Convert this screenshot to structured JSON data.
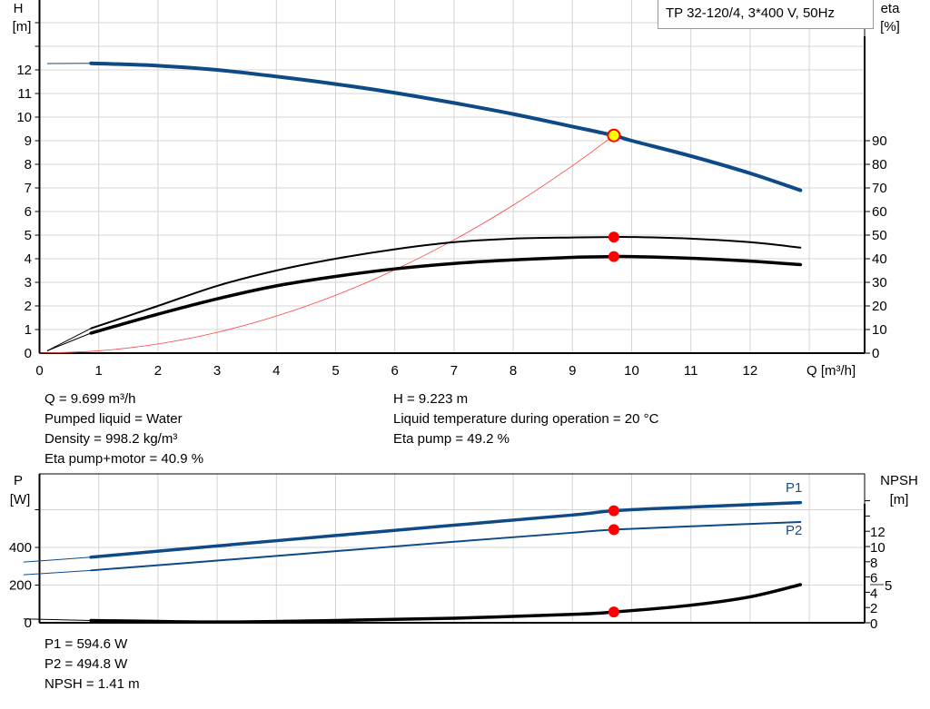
{
  "title": "TP 32-120/4, 3*400 V, 50Hz",
  "info_top": {
    "left": [
      "Q = 9.699 m³/h",
      "Pumped liquid = Water",
      "Density = 998.2 kg/m³",
      "Eta pump+motor = 40.9 %"
    ],
    "right": [
      "H = 9.223 m",
      "Liquid temperature during operation = 20 °C",
      "Eta pump = 49.2 %"
    ]
  },
  "info_bottom": [
    "P1 = 594.6 W",
    "P2 = 494.8 W",
    "NPSH = 1.41 m"
  ],
  "colors": {
    "head": "#0d4a86",
    "eta": "#000000",
    "system": "#ff4040",
    "marker": "#ff0000",
    "marker_head_fill": "#ffff00",
    "grid": "#d4d4d4"
  },
  "chart_data": [
    {
      "type": "line",
      "xlabel": "Q [m³/h]",
      "ylabel": "H\n[m]",
      "ylabel_lines": [
        "H",
        "[m]"
      ],
      "y2label_lines": [
        "eta",
        "[%]"
      ],
      "xlim": [
        0,
        14
      ],
      "ylim": [
        0,
        15
      ],
      "y2lim": [
        0,
        150
      ],
      "xticks": [
        "0",
        "1",
        "2",
        "3",
        "4",
        "5",
        "6",
        "7",
        "8",
        "9",
        "10",
        "11",
        "12"
      ],
      "yticks": [
        "0",
        "1",
        "2",
        "3",
        "4",
        "5",
        "6",
        "7",
        "8",
        "9",
        "10",
        "11",
        "12"
      ],
      "y2ticks": [
        "0",
        "10",
        "20",
        "30",
        "40",
        "50",
        "60",
        "70",
        "80",
        "90"
      ],
      "grid": true,
      "duty_point": {
        "Q": 9.699,
        "H": 9.223,
        "eta_pump": 49.2,
        "eta_pump_motor": 40.9
      },
      "series": [
        {
          "key": "H",
          "axis": "left",
          "x": [
            0.13,
            0.87,
            2,
            3,
            4,
            5,
            6,
            7,
            8,
            9,
            9.699,
            10,
            11,
            12,
            12.85
          ],
          "y": [
            12.27,
            12.28,
            12.18,
            12.0,
            11.72,
            11.4,
            11.03,
            10.6,
            10.13,
            9.6,
            9.223,
            9.0,
            8.35,
            7.62,
            6.9
          ]
        },
        {
          "key": "eta_pump",
          "axis": "right",
          "x": [
            0.13,
            0.87,
            2,
            3,
            4,
            5,
            6,
            7,
            8,
            9,
            9.699,
            10,
            11,
            12,
            12.85
          ],
          "y": [
            1,
            10.5,
            20,
            28.5,
            35,
            40,
            44,
            47,
            48.5,
            49,
            49.2,
            49.2,
            48.5,
            47,
            44.7
          ]
        },
        {
          "key": "eta_pump_motor",
          "axis": "right",
          "x": [
            0.13,
            0.87,
            2,
            3,
            4,
            5,
            6,
            7,
            8,
            9,
            9.699,
            10,
            11,
            12,
            12.85
          ],
          "y": [
            1,
            8.5,
            16.5,
            23,
            28.5,
            32.5,
            35.7,
            38,
            39.5,
            40.6,
            40.9,
            40.9,
            40.2,
            39,
            37.5
          ]
        },
        {
          "key": "system",
          "axis": "left",
          "x": [
            0,
            1,
            2,
            3,
            4,
            5,
            6,
            7,
            8,
            9,
            9.699
          ],
          "y": [
            0,
            0.098,
            0.39,
            0.88,
            1.57,
            2.45,
            3.53,
            4.8,
            6.27,
            7.94,
            9.223
          ]
        }
      ]
    },
    {
      "type": "line",
      "ylabel_lines": [
        "P",
        "[W]"
      ],
      "y2label_lines": [
        "NPSH",
        "[m]"
      ],
      "xlim": [
        0,
        14
      ],
      "ylim": [
        0,
        790
      ],
      "y2lim": [
        0,
        19.5
      ],
      "yticks": [
        "0",
        "200",
        "400"
      ],
      "y2ticks": [
        "0",
        "2",
        "4",
        "5",
        "6",
        "8",
        "10",
        "12"
      ],
      "grid": true,
      "duty_point": {
        "P1": 594.6,
        "P2": 494.8,
        "NPSH": 1.41
      },
      "series": [
        {
          "key": "P1",
          "name": "P1",
          "axis": "left",
          "x": [
            -0.27,
            0.87,
            3,
            5,
            7,
            9,
            9.699,
            11,
            12.85
          ],
          "y": [
            322,
            348,
            408,
            463,
            518,
            572,
            594.6,
            614,
            638
          ]
        },
        {
          "key": "P2",
          "name": "P2",
          "axis": "left",
          "x": [
            -0.27,
            0.87,
            3,
            5,
            7,
            9,
            9.699,
            11,
            12.85
          ],
          "y": [
            255,
            278,
            330,
            380,
            430,
            478,
            494.8,
            512,
            535
          ]
        },
        {
          "key": "NPSH",
          "axis": "right",
          "x": [
            -0.27,
            0.87,
            3,
            5,
            7,
            9,
            9.699,
            11,
            12,
            12.85
          ],
          "y": [
            0.5,
            0.3,
            0.1,
            0.3,
            0.6,
            1.1,
            1.41,
            2.3,
            3.4,
            5
          ]
        }
      ]
    }
  ]
}
